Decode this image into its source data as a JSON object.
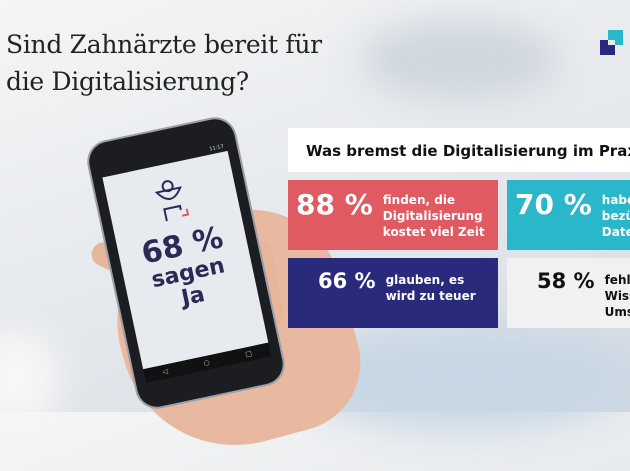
{
  "title_line1": "Sind Zahnärzte bereit für",
  "title_line2": "die Digitalisierung?",
  "phone": {
    "percent": "68 %",
    "line1": "sagen",
    "line2": "Ja",
    "status_time": "11:17"
  },
  "question": "Was bremst die Digitalisierung im Praxis",
  "stats": [
    {
      "percent": "88 %",
      "text": [
        "finden, die",
        "Digitalisierung",
        "kostet viel Zeit"
      ],
      "color": "#e05a62"
    },
    {
      "percent": "70 %",
      "text": [
        "habe",
        "bezü",
        "Date"
      ],
      "color": "#2ab7c9"
    },
    {
      "percent": "66 %",
      "text": [
        "glauben, es",
        "wird zu teuer"
      ],
      "color": "#2a2a7c"
    },
    {
      "percent": "58 %",
      "text": [
        "fehlt",
        "Wiss",
        "Ums"
      ],
      "color": "#f1f1f1"
    }
  ]
}
